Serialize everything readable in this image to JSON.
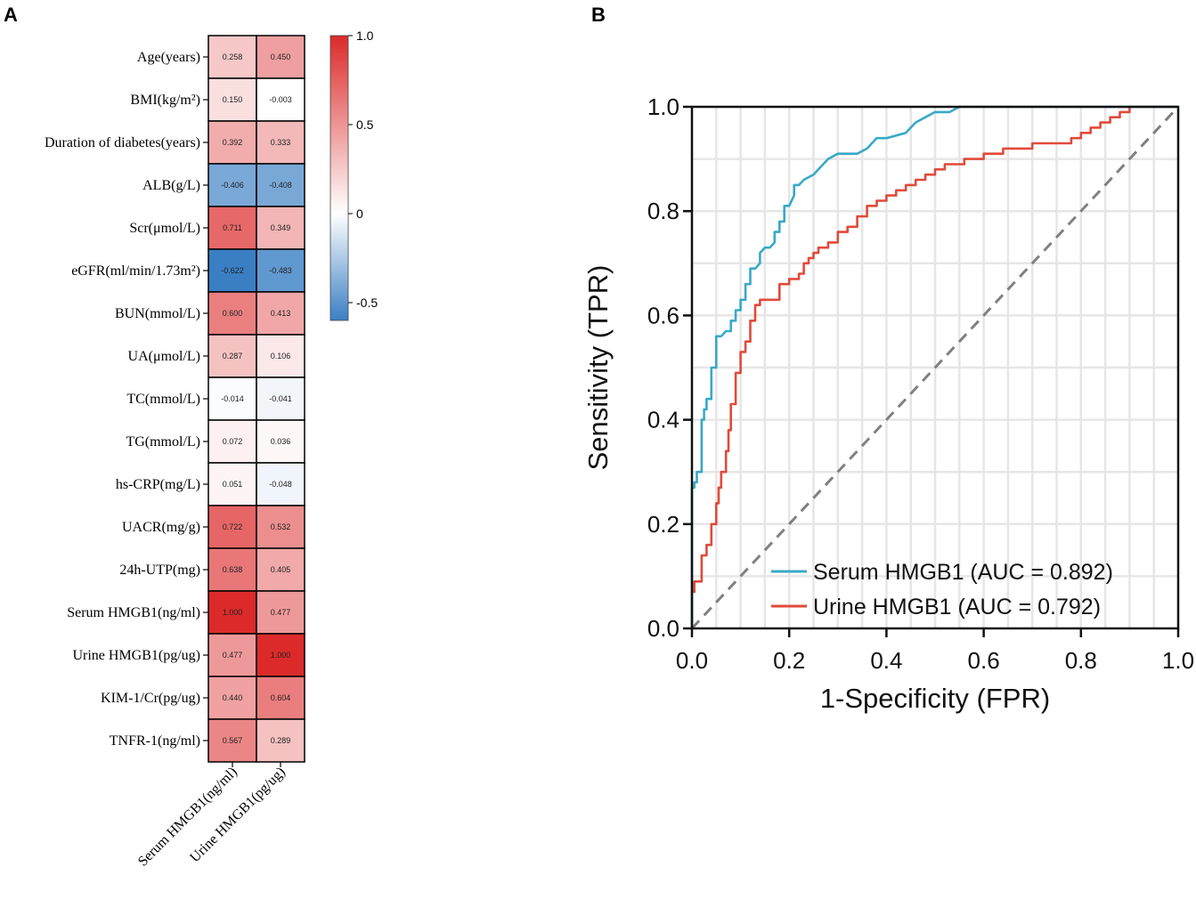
{
  "panels": {
    "a_label": "A",
    "b_label": "B"
  },
  "chart_data": [
    {
      "type": "heatmap",
      "panel": "A",
      "rows": [
        "Age(years)",
        "BMI(kg/m²)",
        "Duration of diabetes(years)",
        "ALB(g/L)",
        "Scr(μmol/L)",
        "eGFR(ml/min/1.73m²)",
        "BUN(mmol/L)",
        "UA(μmol/L)",
        "TC(mmol/L)",
        "TG(mmol/L)",
        "hs-CRP(mg/L)",
        "UACR(mg/g)",
        "24h-UTP(mg)",
        "Serum HMGB1(ng/ml)",
        "Urine HMGB1(pg/ug)",
        "KIM-1/Cr(pg/ug)",
        "TNFR-1(ng/ml)"
      ],
      "columns": [
        "Serum HMGB1(ng/ml)",
        "Urine HMGB1(pg/ug)"
      ],
      "values": [
        [
          0.258,
          0.45
        ],
        [
          0.15,
          -0.003
        ],
        [
          0.392,
          0.333
        ],
        [
          -0.406,
          -0.408
        ],
        [
          0.711,
          0.349
        ],
        [
          -0.622,
          -0.483
        ],
        [
          0.6,
          0.413
        ],
        [
          0.287,
          0.106
        ],
        [
          -0.014,
          -0.041
        ],
        [
          0.072,
          0.036
        ],
        [
          0.051,
          -0.048
        ],
        [
          0.722,
          0.532
        ],
        [
          0.638,
          0.405
        ],
        [
          1.0,
          0.477
        ],
        [
          0.477,
          1.0
        ],
        [
          0.44,
          0.604
        ],
        [
          0.567,
          0.289
        ]
      ],
      "labels": [
        [
          "0.258",
          "0.450"
        ],
        [
          "0.150",
          "-0.003"
        ],
        [
          "0.392",
          "0.333"
        ],
        [
          "-0.406",
          "-0.408"
        ],
        [
          "0.711",
          "0.349"
        ],
        [
          "-0.622",
          "-0.483"
        ],
        [
          "0.600",
          "0.413"
        ],
        [
          "0.287",
          "0.106"
        ],
        [
          "-0.014",
          "-0.041"
        ],
        [
          "0.072",
          "0.036"
        ],
        [
          "0.051",
          "-0.048"
        ],
        [
          "0.722",
          "0.532"
        ],
        [
          "0.638",
          "0.405"
        ],
        [
          "1.000",
          "0.477"
        ],
        [
          "0.477",
          "1.000"
        ],
        [
          "0.440",
          "0.604"
        ],
        [
          "0.567",
          "0.289"
        ]
      ],
      "colorbar": {
        "range": [
          -0.6,
          1.0
        ],
        "ticks": [
          1.0,
          0.5,
          0,
          -0.5
        ],
        "tick_labels": [
          "1.0",
          "0.5",
          "0",
          "-0.5"
        ],
        "colors": {
          "low": "#3a7fc4",
          "mid": "#ffffff",
          "high": "#dc2a2a"
        }
      }
    },
    {
      "type": "line",
      "panel": "B",
      "title": "",
      "xlabel": "1-Specificity (FPR)",
      "ylabel": "Sensitivity (TPR)",
      "xlim": [
        0,
        1
      ],
      "ylim": [
        0,
        1
      ],
      "xticks": [
        0.0,
        0.2,
        0.4,
        0.6,
        0.8,
        1.0
      ],
      "xtick_labels": [
        "0.0",
        "0.2",
        "0.4",
        "0.6",
        "0.8",
        "1.0"
      ],
      "yticks": [
        0.0,
        0.2,
        0.4,
        0.6,
        0.8,
        1.0
      ],
      "ytick_labels": [
        "0.0",
        "0.2",
        "0.4",
        "0.6",
        "0.8",
        "1.0"
      ],
      "grid": true,
      "legend_position": "bottom-right",
      "series": [
        {
          "name": "Serum HMGB1 (AUC = 0.892)",
          "color": "#38a9c7",
          "x": [
            0,
            0,
            0.005,
            0.005,
            0.01,
            0.01,
            0.02,
            0.02,
            0.025,
            0.025,
            0.03,
            0.03,
            0.04,
            0.04,
            0.05,
            0.05,
            0.06,
            0.07,
            0.08,
            0.08,
            0.09,
            0.09,
            0.1,
            0.1,
            0.11,
            0.11,
            0.12,
            0.12,
            0.13,
            0.14,
            0.14,
            0.15,
            0.16,
            0.17,
            0.17,
            0.18,
            0.18,
            0.19,
            0.19,
            0.2,
            0.21,
            0.21,
            0.22,
            0.23,
            0.25,
            0.26,
            0.27,
            0.28,
            0.3,
            0.34,
            0.36,
            0.37,
            0.38,
            0.4,
            0.44,
            0.45,
            0.46,
            0.48,
            0.5,
            0.53,
            0.55,
            0.6,
            0.7,
            0.8,
            0.9,
            0.93,
            1.0
          ],
          "y": [
            0,
            0.27,
            0.27,
            0.28,
            0.28,
            0.3,
            0.3,
            0.4,
            0.4,
            0.42,
            0.42,
            0.44,
            0.44,
            0.5,
            0.5,
            0.56,
            0.56,
            0.57,
            0.57,
            0.59,
            0.59,
            0.61,
            0.61,
            0.63,
            0.63,
            0.66,
            0.66,
            0.69,
            0.69,
            0.7,
            0.72,
            0.73,
            0.73,
            0.74,
            0.76,
            0.76,
            0.78,
            0.78,
            0.81,
            0.81,
            0.83,
            0.85,
            0.85,
            0.86,
            0.87,
            0.88,
            0.89,
            0.9,
            0.91,
            0.91,
            0.92,
            0.93,
            0.94,
            0.94,
            0.95,
            0.96,
            0.97,
            0.98,
            0.99,
            0.99,
            1.0,
            1.0,
            1.0,
            1.0,
            1.0,
            1.0,
            1.0
          ]
        },
        {
          "name": "Urine HMGB1 (AUC = 0.792)",
          "color": "#e04a3a",
          "x": [
            0,
            0,
            0.005,
            0.005,
            0.02,
            0.02,
            0.03,
            0.03,
            0.04,
            0.04,
            0.05,
            0.05,
            0.055,
            0.055,
            0.06,
            0.06,
            0.07,
            0.07,
            0.075,
            0.075,
            0.08,
            0.08,
            0.09,
            0.09,
            0.1,
            0.1,
            0.11,
            0.11,
            0.12,
            0.12,
            0.13,
            0.13,
            0.14,
            0.14,
            0.18,
            0.18,
            0.2,
            0.2,
            0.22,
            0.22,
            0.23,
            0.23,
            0.24,
            0.24,
            0.25,
            0.25,
            0.26,
            0.26,
            0.28,
            0.28,
            0.3,
            0.3,
            0.32,
            0.32,
            0.34,
            0.34,
            0.36,
            0.36,
            0.38,
            0.38,
            0.4,
            0.4,
            0.42,
            0.42,
            0.44,
            0.44,
            0.46,
            0.46,
            0.48,
            0.48,
            0.5,
            0.5,
            0.52,
            0.52,
            0.56,
            0.56,
            0.6,
            0.6,
            0.64,
            0.64,
            0.7,
            0.7,
            0.78,
            0.78,
            0.8,
            0.8,
            0.82,
            0.82,
            0.84,
            0.84,
            0.86,
            0.86,
            0.88,
            0.88,
            0.9,
            0.9,
            0.92,
            0.92,
            0.96,
            0.96,
            1.0
          ],
          "y": [
            0,
            0.07,
            0.07,
            0.09,
            0.09,
            0.14,
            0.14,
            0.16,
            0.16,
            0.2,
            0.2,
            0.24,
            0.24,
            0.27,
            0.27,
            0.3,
            0.3,
            0.34,
            0.34,
            0.38,
            0.38,
            0.43,
            0.43,
            0.49,
            0.49,
            0.53,
            0.53,
            0.55,
            0.55,
            0.59,
            0.59,
            0.62,
            0.62,
            0.63,
            0.63,
            0.66,
            0.66,
            0.67,
            0.67,
            0.68,
            0.68,
            0.7,
            0.7,
            0.71,
            0.71,
            0.72,
            0.72,
            0.73,
            0.73,
            0.74,
            0.74,
            0.76,
            0.76,
            0.77,
            0.77,
            0.79,
            0.79,
            0.81,
            0.81,
            0.82,
            0.82,
            0.83,
            0.83,
            0.84,
            0.84,
            0.85,
            0.85,
            0.86,
            0.86,
            0.87,
            0.87,
            0.88,
            0.88,
            0.89,
            0.89,
            0.9,
            0.9,
            0.91,
            0.91,
            0.92,
            0.92,
            0.93,
            0.93,
            0.94,
            0.94,
            0.95,
            0.95,
            0.96,
            0.96,
            0.97,
            0.97,
            0.98,
            0.98,
            0.99,
            0.99,
            1.0,
            1.0,
            1.0,
            1.0,
            1.0,
            1.0
          ]
        },
        {
          "name": "reference diagonal",
          "color": "#808080",
          "style": "dashed",
          "x": [
            0,
            1
          ],
          "y": [
            0,
            1
          ]
        }
      ]
    }
  ]
}
